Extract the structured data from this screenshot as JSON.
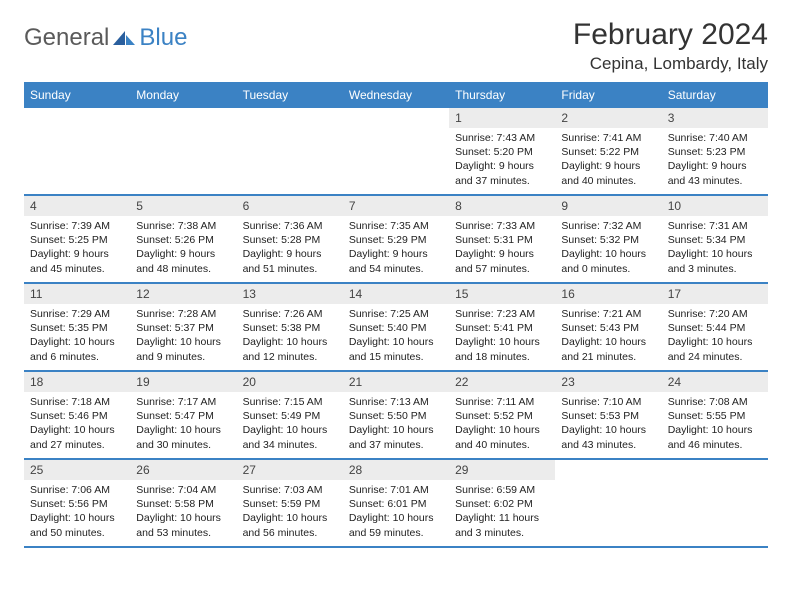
{
  "brand": {
    "part1": "General",
    "part2": "Blue"
  },
  "title": "February 2024",
  "location": "Cepina, Lombardy, Italy",
  "colors": {
    "header_bg": "#3b82c4",
    "header_text": "#ffffff",
    "daynum_bg": "#ececec",
    "body_text": "#222222",
    "page_bg": "#ffffff",
    "logo_gray": "#5a5a5a",
    "logo_blue": "#3b82c4"
  },
  "day_labels": [
    "Sunday",
    "Monday",
    "Tuesday",
    "Wednesday",
    "Thursday",
    "Friday",
    "Saturday"
  ],
  "weeks": [
    [
      null,
      null,
      null,
      null,
      {
        "n": "1",
        "sr": "Sunrise: 7:43 AM",
        "ss": "Sunset: 5:20 PM",
        "d1": "Daylight: 9 hours",
        "d2": "and 37 minutes."
      },
      {
        "n": "2",
        "sr": "Sunrise: 7:41 AM",
        "ss": "Sunset: 5:22 PM",
        "d1": "Daylight: 9 hours",
        "d2": "and 40 minutes."
      },
      {
        "n": "3",
        "sr": "Sunrise: 7:40 AM",
        "ss": "Sunset: 5:23 PM",
        "d1": "Daylight: 9 hours",
        "d2": "and 43 minutes."
      }
    ],
    [
      {
        "n": "4",
        "sr": "Sunrise: 7:39 AM",
        "ss": "Sunset: 5:25 PM",
        "d1": "Daylight: 9 hours",
        "d2": "and 45 minutes."
      },
      {
        "n": "5",
        "sr": "Sunrise: 7:38 AM",
        "ss": "Sunset: 5:26 PM",
        "d1": "Daylight: 9 hours",
        "d2": "and 48 minutes."
      },
      {
        "n": "6",
        "sr": "Sunrise: 7:36 AM",
        "ss": "Sunset: 5:28 PM",
        "d1": "Daylight: 9 hours",
        "d2": "and 51 minutes."
      },
      {
        "n": "7",
        "sr": "Sunrise: 7:35 AM",
        "ss": "Sunset: 5:29 PM",
        "d1": "Daylight: 9 hours",
        "d2": "and 54 minutes."
      },
      {
        "n": "8",
        "sr": "Sunrise: 7:33 AM",
        "ss": "Sunset: 5:31 PM",
        "d1": "Daylight: 9 hours",
        "d2": "and 57 minutes."
      },
      {
        "n": "9",
        "sr": "Sunrise: 7:32 AM",
        "ss": "Sunset: 5:32 PM",
        "d1": "Daylight: 10 hours",
        "d2": "and 0 minutes."
      },
      {
        "n": "10",
        "sr": "Sunrise: 7:31 AM",
        "ss": "Sunset: 5:34 PM",
        "d1": "Daylight: 10 hours",
        "d2": "and 3 minutes."
      }
    ],
    [
      {
        "n": "11",
        "sr": "Sunrise: 7:29 AM",
        "ss": "Sunset: 5:35 PM",
        "d1": "Daylight: 10 hours",
        "d2": "and 6 minutes."
      },
      {
        "n": "12",
        "sr": "Sunrise: 7:28 AM",
        "ss": "Sunset: 5:37 PM",
        "d1": "Daylight: 10 hours",
        "d2": "and 9 minutes."
      },
      {
        "n": "13",
        "sr": "Sunrise: 7:26 AM",
        "ss": "Sunset: 5:38 PM",
        "d1": "Daylight: 10 hours",
        "d2": "and 12 minutes."
      },
      {
        "n": "14",
        "sr": "Sunrise: 7:25 AM",
        "ss": "Sunset: 5:40 PM",
        "d1": "Daylight: 10 hours",
        "d2": "and 15 minutes."
      },
      {
        "n": "15",
        "sr": "Sunrise: 7:23 AM",
        "ss": "Sunset: 5:41 PM",
        "d1": "Daylight: 10 hours",
        "d2": "and 18 minutes."
      },
      {
        "n": "16",
        "sr": "Sunrise: 7:21 AM",
        "ss": "Sunset: 5:43 PM",
        "d1": "Daylight: 10 hours",
        "d2": "and 21 minutes."
      },
      {
        "n": "17",
        "sr": "Sunrise: 7:20 AM",
        "ss": "Sunset: 5:44 PM",
        "d1": "Daylight: 10 hours",
        "d2": "and 24 minutes."
      }
    ],
    [
      {
        "n": "18",
        "sr": "Sunrise: 7:18 AM",
        "ss": "Sunset: 5:46 PM",
        "d1": "Daylight: 10 hours",
        "d2": "and 27 minutes."
      },
      {
        "n": "19",
        "sr": "Sunrise: 7:17 AM",
        "ss": "Sunset: 5:47 PM",
        "d1": "Daylight: 10 hours",
        "d2": "and 30 minutes."
      },
      {
        "n": "20",
        "sr": "Sunrise: 7:15 AM",
        "ss": "Sunset: 5:49 PM",
        "d1": "Daylight: 10 hours",
        "d2": "and 34 minutes."
      },
      {
        "n": "21",
        "sr": "Sunrise: 7:13 AM",
        "ss": "Sunset: 5:50 PM",
        "d1": "Daylight: 10 hours",
        "d2": "and 37 minutes."
      },
      {
        "n": "22",
        "sr": "Sunrise: 7:11 AM",
        "ss": "Sunset: 5:52 PM",
        "d1": "Daylight: 10 hours",
        "d2": "and 40 minutes."
      },
      {
        "n": "23",
        "sr": "Sunrise: 7:10 AM",
        "ss": "Sunset: 5:53 PM",
        "d1": "Daylight: 10 hours",
        "d2": "and 43 minutes."
      },
      {
        "n": "24",
        "sr": "Sunrise: 7:08 AM",
        "ss": "Sunset: 5:55 PM",
        "d1": "Daylight: 10 hours",
        "d2": "and 46 minutes."
      }
    ],
    [
      {
        "n": "25",
        "sr": "Sunrise: 7:06 AM",
        "ss": "Sunset: 5:56 PM",
        "d1": "Daylight: 10 hours",
        "d2": "and 50 minutes."
      },
      {
        "n": "26",
        "sr": "Sunrise: 7:04 AM",
        "ss": "Sunset: 5:58 PM",
        "d1": "Daylight: 10 hours",
        "d2": "and 53 minutes."
      },
      {
        "n": "27",
        "sr": "Sunrise: 7:03 AM",
        "ss": "Sunset: 5:59 PM",
        "d1": "Daylight: 10 hours",
        "d2": "and 56 minutes."
      },
      {
        "n": "28",
        "sr": "Sunrise: 7:01 AM",
        "ss": "Sunset: 6:01 PM",
        "d1": "Daylight: 10 hours",
        "d2": "and 59 minutes."
      },
      {
        "n": "29",
        "sr": "Sunrise: 6:59 AM",
        "ss": "Sunset: 6:02 PM",
        "d1": "Daylight: 11 hours",
        "d2": "and 3 minutes."
      },
      null,
      null
    ]
  ]
}
